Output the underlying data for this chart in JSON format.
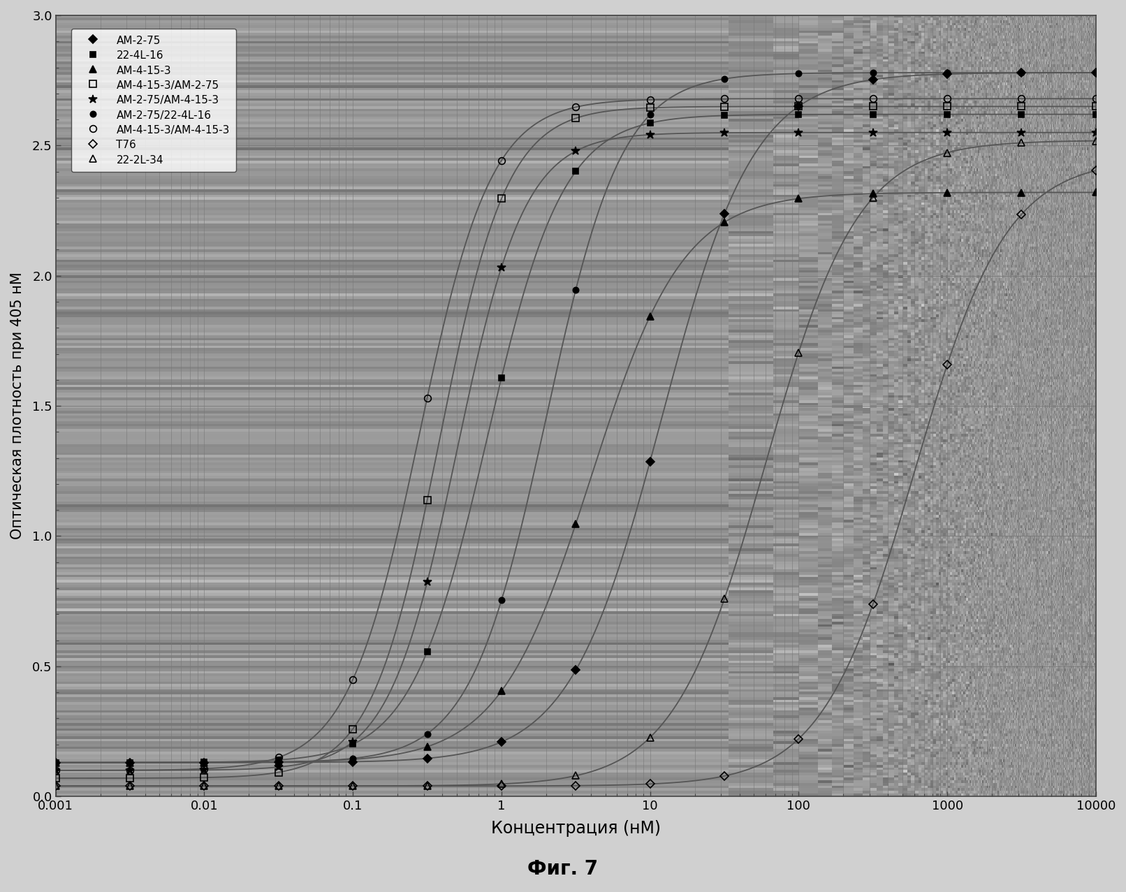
{
  "series": [
    {
      "label": "AM-2-75",
      "marker": "D",
      "fillstyle": "full",
      "markersize": 6,
      "ec50": 12.0,
      "ymax": 2.78,
      "ymin": 0.13,
      "hill": 1.4
    },
    {
      "label": "22-4L-16",
      "marker": "s",
      "fillstyle": "full",
      "markersize": 6,
      "ec50": 0.8,
      "ymax": 2.62,
      "ymin": 0.13,
      "hill": 1.7
    },
    {
      "label": "AM-4-15-3",
      "marker": "^",
      "fillstyle": "full",
      "markersize": 7,
      "ec50": 4.0,
      "ymax": 2.32,
      "ymin": 0.13,
      "hill": 1.4
    },
    {
      "label": "AM-4-15-3/AM-2-75",
      "marker": "s",
      "fillstyle": "none",
      "markersize": 7,
      "ec50": 0.38,
      "ymax": 2.65,
      "ymin": 0.07,
      "hill": 1.9
    },
    {
      "label": "AM-2-75/AM-4-15-3",
      "marker": "*",
      "fillstyle": "full",
      "markersize": 9,
      "ec50": 0.5,
      "ymax": 2.55,
      "ymin": 0.1,
      "hill": 1.9
    },
    {
      "label": "AM-2-75/22-4L-16",
      "marker": "o",
      "fillstyle": "full",
      "markersize": 6,
      "ec50": 2.0,
      "ymax": 2.78,
      "ymin": 0.13,
      "hill": 1.7
    },
    {
      "label": "AM-4-15-3/AM-4-15-3",
      "marker": "o",
      "fillstyle": "none",
      "markersize": 7,
      "ec50": 0.28,
      "ymax": 2.68,
      "ymin": 0.1,
      "hill": 1.8
    },
    {
      "label": "T76",
      "marker": "D",
      "fillstyle": "none",
      "markersize": 6,
      "ec50": 600.0,
      "ymax": 2.45,
      "ymin": 0.04,
      "hill": 1.4
    },
    {
      "label": "22-2L-34",
      "marker": "^",
      "fillstyle": "none",
      "markersize": 7,
      "ec50": 60.0,
      "ymax": 2.52,
      "ymin": 0.04,
      "hill": 1.4
    }
  ],
  "xlabel": "Концентрация (нМ)",
  "ylabel": "Оптическая плотность при 405 нМ",
  "caption": "Фиг. 7",
  "xlim_log": [
    -3,
    4
  ],
  "ylim": [
    0,
    3
  ],
  "yticks": [
    0,
    0.5,
    1.0,
    1.5,
    2.0,
    2.5,
    3.0
  ],
  "line_color": "#555555",
  "marker_color": "#000000",
  "bg_color": "#d0d0d0",
  "plot_bg_color": "#a8a8a8",
  "legend_bg": "#f0f0f0",
  "outer_border_color": "#888888",
  "xlabel_fontsize": 17,
  "ylabel_fontsize": 15,
  "tick_fontsize": 13,
  "legend_fontsize": 11,
  "caption_fontsize": 20
}
